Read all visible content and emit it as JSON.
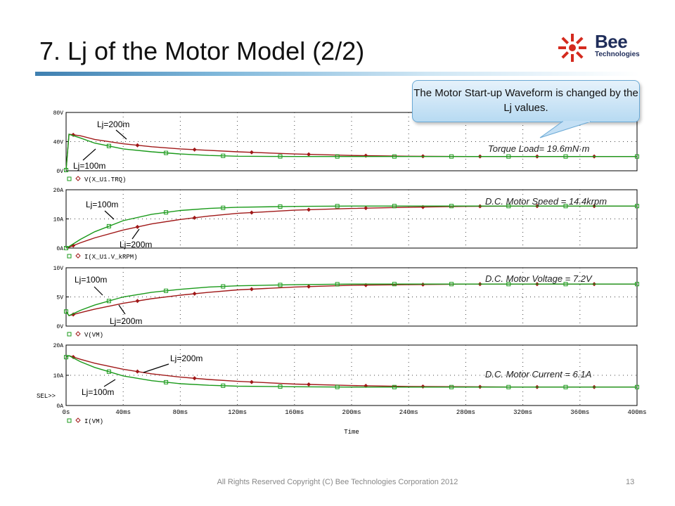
{
  "slide": {
    "title": "7. Lj of the Motor Model (2/2)",
    "logo_name": "Bee",
    "logo_sub": "Technologies",
    "callout": "The Motor Start-up Waveform is changed by the Lj values.",
    "footer": "All Rights Reserved Copyright (C) Bee Technologies Corporation 2012",
    "page_number": "13"
  },
  "colors": {
    "lj200": "#a01818",
    "lj100": "#1a9a1a",
    "accent": "#3e7fb0"
  },
  "chart_data": [
    {
      "type": "line",
      "title": "Torque Load= 19.6mN·m",
      "trace_name": "V(X_U1.TRQ)",
      "ylabel": "",
      "xlabel": "Time",
      "ylim": [
        0,
        80
      ],
      "yticks": [
        "0V",
        "40V",
        "80V"
      ],
      "xlim": [
        0,
        400
      ],
      "xticks": [
        "0s",
        "40ms",
        "80ms",
        "120ms",
        "160ms",
        "200ms",
        "240ms",
        "280ms",
        "320ms",
        "360ms",
        "400ms"
      ],
      "x": [
        0,
        2,
        10,
        20,
        40,
        60,
        80,
        100,
        120,
        160,
        200,
        240,
        280,
        320,
        360,
        400
      ],
      "series": [
        {
          "name": "Lj=200m",
          "values": [
            1,
            50,
            48,
            43,
            37,
            33,
            30,
            28,
            26,
            23,
            21,
            20,
            19.6,
            19.6,
            19.6,
            19.6
          ]
        },
        {
          "name": "Lj=100m",
          "values": [
            1,
            50,
            45,
            38,
            30,
            26,
            23,
            21,
            20,
            19.6,
            19.6,
            19.6,
            19.6,
            19.6,
            19.6,
            19.6
          ]
        }
      ],
      "annotations": [
        "Lj=200m",
        "Lj=100m"
      ]
    },
    {
      "type": "line",
      "title": "D.C. Motor Speed = 14.4krpm",
      "trace_name": "I(X_U1.V_kRPM)",
      "ylim": [
        0,
        20
      ],
      "yticks": [
        "0A",
        "10A",
        "20A"
      ],
      "xlim": [
        0,
        400
      ],
      "x": [
        0,
        2,
        10,
        20,
        40,
        60,
        80,
        100,
        120,
        160,
        200,
        240,
        280,
        320,
        360,
        400
      ],
      "series": [
        {
          "name": "Lj=200m",
          "values": [
            0,
            0.3,
            1.8,
            3.5,
            6.2,
            8.3,
            9.8,
            11,
            11.9,
            13,
            13.6,
            14,
            14.3,
            14.4,
            14.4,
            14.4
          ]
        },
        {
          "name": "Lj=100m",
          "values": [
            0,
            0.5,
            3,
            5.6,
            9.4,
            11.6,
            12.9,
            13.6,
            14,
            14.3,
            14.4,
            14.4,
            14.4,
            14.4,
            14.4,
            14.4
          ]
        }
      ],
      "annotations": [
        "Lj=100m",
        "Lj=200m"
      ]
    },
    {
      "type": "line",
      "title": "D.C. Motor Voltage = 7.2V",
      "trace_name": "V(VM)",
      "ylim": [
        0,
        10
      ],
      "yticks": [
        "0V",
        "5V",
        "10V"
      ],
      "xlim": [
        0,
        400
      ],
      "x": [
        0,
        2,
        10,
        20,
        40,
        60,
        80,
        100,
        120,
        160,
        200,
        240,
        280,
        320,
        360,
        400
      ],
      "series": [
        {
          "name": "Lj=200m",
          "values": [
            2.5,
            1.8,
            2.3,
            2.9,
            3.9,
            4.7,
            5.3,
            5.8,
            6.2,
            6.7,
            7,
            7.1,
            7.2,
            7.2,
            7.2,
            7.2
          ]
        },
        {
          "name": "Lj=100m",
          "values": [
            2.5,
            1.8,
            2.7,
            3.6,
            5,
            5.8,
            6.3,
            6.7,
            6.9,
            7.1,
            7.2,
            7.2,
            7.2,
            7.2,
            7.2,
            7.2
          ]
        }
      ],
      "annotations": [
        "Lj=100m",
        "Lj=200m"
      ]
    },
    {
      "type": "line",
      "title": "D.C. Motor Current = 6.1A",
      "trace_name": "I(VM)",
      "ylim": [
        0,
        20
      ],
      "yticks": [
        "0A",
        "10A",
        "20A"
      ],
      "xlim": [
        0,
        400
      ],
      "xticks": [
        "0s",
        "40ms",
        "80ms",
        "120ms",
        "160ms",
        "200ms",
        "240ms",
        "280ms",
        "320ms",
        "360ms",
        "400ms"
      ],
      "xlabel": "Time",
      "cursor_label": "SEL>>",
      "x": [
        0,
        2,
        10,
        20,
        40,
        60,
        80,
        100,
        120,
        160,
        200,
        240,
        280,
        320,
        360,
        400
      ],
      "series": [
        {
          "name": "Lj=200m",
          "values": [
            16,
            16.5,
            15.3,
            14,
            12,
            10.5,
            9.4,
            8.6,
            8,
            7.1,
            6.6,
            6.3,
            6.2,
            6.1,
            6.1,
            6.1
          ]
        },
        {
          "name": "Lj=100m",
          "values": [
            16,
            16.5,
            14.5,
            12.6,
            9.8,
            8.2,
            7.2,
            6.7,
            6.4,
            6.2,
            6.1,
            6.1,
            6.1,
            6.1,
            6.1,
            6.1
          ]
        }
      ],
      "annotations": [
        "Lj=200m",
        "Lj=100m"
      ]
    }
  ]
}
